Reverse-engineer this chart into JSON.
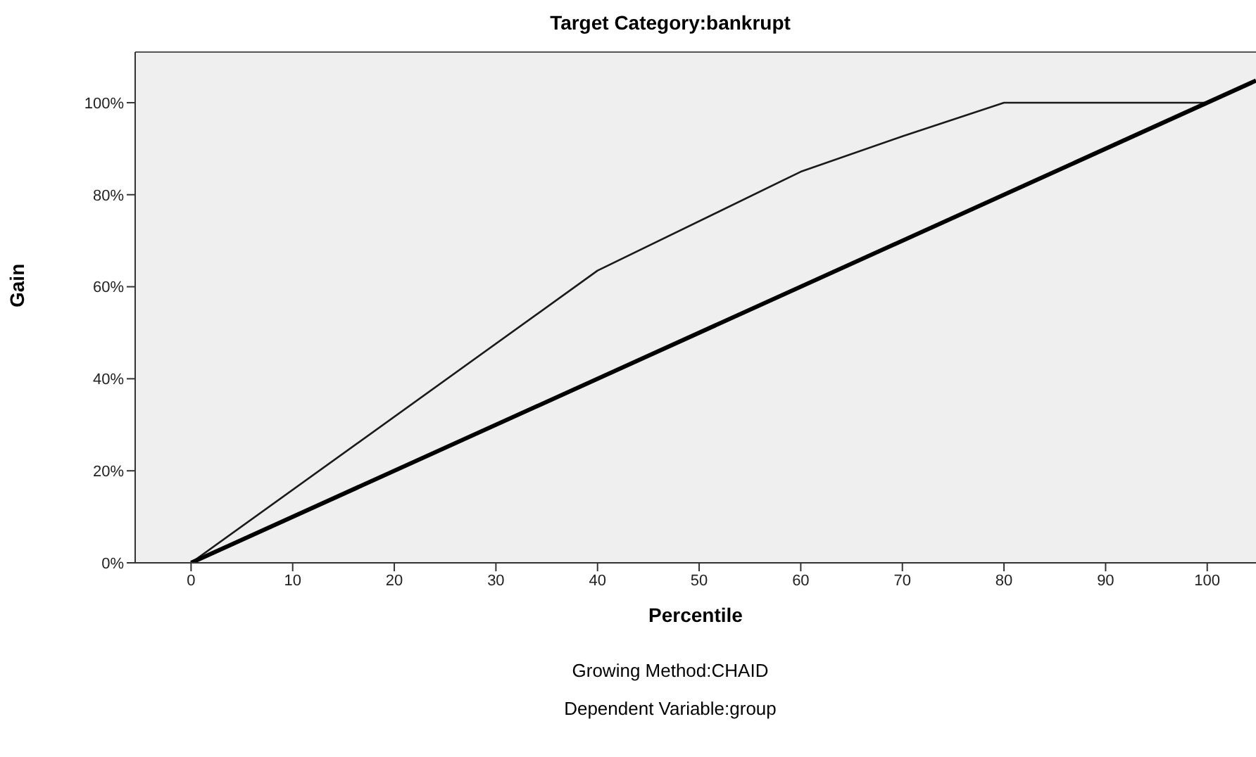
{
  "chart_data": {
    "type": "line",
    "title": "Target Category:bankrupt",
    "xlabel": "Percentile",
    "ylabel": "Gain",
    "annotations": [
      "Growing Method:CHAID",
      "Dependent Variable:group"
    ],
    "series": [
      {
        "color": "#1a1a1a",
        "x": [
          0,
          40,
          60,
          70,
          80,
          100
        ],
        "values": [
          0,
          63.5,
          85,
          92.7,
          100,
          100
        ]
      },
      {
        "color": "#000000",
        "x": [
          0,
          104.8
        ],
        "values": [
          0,
          104.8
        ]
      }
    ],
    "xlim": [
      -5.5,
      104.8
    ],
    "xticks": [
      0,
      10,
      20,
      30,
      40,
      50,
      60,
      70,
      80,
      90,
      100
    ],
    "ylim": [
      0,
      111
    ],
    "yticks": [
      {
        "value": 0,
        "label": "0%"
      },
      {
        "value": 20,
        "label": "20%"
      },
      {
        "value": 40,
        "label": "40%"
      },
      {
        "value": 60,
        "label": "60%"
      },
      {
        "value": 80,
        "label": "80%"
      },
      {
        "value": 100,
        "label": "100%"
      }
    ],
    "grid": false,
    "marker": "none",
    "line_style": "solid"
  }
}
